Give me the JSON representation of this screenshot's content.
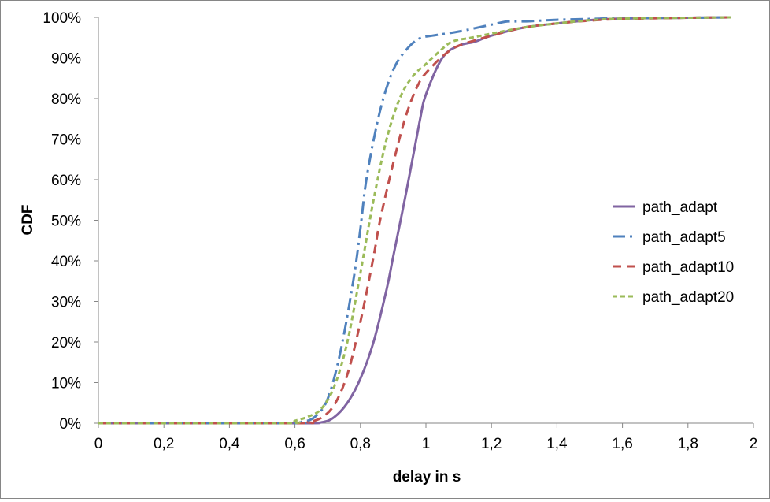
{
  "chart_data": {
    "type": "line",
    "xlabel": "delay in s",
    "ylabel": "CDF",
    "xlim": [
      0,
      2
    ],
    "ylim": [
      0,
      1
    ],
    "x_ticks": [
      {
        "value": 0,
        "label": "0"
      },
      {
        "value": 0.2,
        "label": "0,2"
      },
      {
        "value": 0.4,
        "label": "0,4"
      },
      {
        "value": 0.6,
        "label": "0,6"
      },
      {
        "value": 0.8,
        "label": "0,8"
      },
      {
        "value": 1.0,
        "label": "1"
      },
      {
        "value": 1.2,
        "label": "1,2"
      },
      {
        "value": 1.4,
        "label": "1,4"
      },
      {
        "value": 1.6,
        "label": "1,6"
      },
      {
        "value": 1.8,
        "label": "1,8"
      },
      {
        "value": 2.0,
        "label": "2"
      }
    ],
    "y_ticks": [
      {
        "value": 0,
        "label": "0%"
      },
      {
        "value": 0.1,
        "label": "10%"
      },
      {
        "value": 0.2,
        "label": "20%"
      },
      {
        "value": 0.3,
        "label": "30%"
      },
      {
        "value": 0.4,
        "label": "40%"
      },
      {
        "value": 0.5,
        "label": "50%"
      },
      {
        "value": 0.6,
        "label": "60%"
      },
      {
        "value": 0.7,
        "label": "70%"
      },
      {
        "value": 0.8,
        "label": "80%"
      },
      {
        "value": 0.9,
        "label": "90%"
      },
      {
        "value": 1.0,
        "label": "100%"
      }
    ],
    "grid": false,
    "legend_position": "right",
    "series": [
      {
        "name": "path_adapt",
        "color": "#8064A2",
        "dash": "solid",
        "x": [
          0,
          0.6,
          0.68,
          0.72,
          0.76,
          0.8,
          0.84,
          0.88,
          0.9,
          0.94,
          0.98,
          1.0,
          1.05,
          1.1,
          1.15,
          1.2,
          1.3,
          1.4,
          1.5,
          1.6,
          1.8,
          1.93
        ],
        "y": [
          0,
          0,
          0.002,
          0.015,
          0.05,
          0.11,
          0.2,
          0.33,
          0.41,
          0.57,
          0.74,
          0.81,
          0.9,
          0.93,
          0.94,
          0.955,
          0.975,
          0.985,
          0.993,
          0.997,
          0.999,
          1.0
        ]
      },
      {
        "name": "path_adapt5",
        "color": "#4F81BD",
        "dash": "dashdot",
        "x": [
          0,
          0.58,
          0.62,
          0.66,
          0.7,
          0.74,
          0.78,
          0.8,
          0.82,
          0.86,
          0.9,
          0.94,
          0.98,
          1.02,
          1.1,
          1.2,
          1.25,
          1.3,
          1.4,
          1.5,
          1.6,
          1.8,
          1.93
        ],
        "y": [
          0,
          0,
          0.003,
          0.015,
          0.06,
          0.18,
          0.36,
          0.48,
          0.61,
          0.77,
          0.87,
          0.92,
          0.948,
          0.955,
          0.965,
          0.982,
          0.99,
          0.99,
          0.994,
          0.996,
          0.998,
          0.999,
          1.0
        ]
      },
      {
        "name": "path_adapt10",
        "color": "#C0504D",
        "dash": "dashed",
        "x": [
          0,
          0.6,
          0.64,
          0.68,
          0.72,
          0.76,
          0.8,
          0.84,
          0.86,
          0.9,
          0.94,
          0.98,
          1.02,
          1.06,
          1.1,
          1.2,
          1.3,
          1.4,
          1.5,
          1.6,
          1.8,
          1.93
        ],
        "y": [
          0,
          0,
          0.003,
          0.013,
          0.045,
          0.12,
          0.25,
          0.41,
          0.5,
          0.64,
          0.76,
          0.84,
          0.88,
          0.91,
          0.93,
          0.955,
          0.975,
          0.985,
          0.992,
          0.996,
          0.999,
          1.0
        ]
      },
      {
        "name": "path_adapt20",
        "color": "#9BBB59",
        "dash": "shortdash",
        "x": [
          0,
          0.56,
          0.6,
          0.64,
          0.68,
          0.72,
          0.76,
          0.8,
          0.84,
          0.88,
          0.92,
          0.96,
          1.0,
          1.04,
          1.08,
          1.14,
          1.2,
          1.3,
          1.4,
          1.5,
          1.6,
          1.8,
          1.93
        ],
        "y": [
          0,
          0,
          0.006,
          0.016,
          0.035,
          0.09,
          0.2,
          0.37,
          0.55,
          0.7,
          0.8,
          0.855,
          0.885,
          0.915,
          0.94,
          0.95,
          0.96,
          0.975,
          0.985,
          0.993,
          0.997,
          0.999,
          1.0
        ]
      }
    ]
  }
}
